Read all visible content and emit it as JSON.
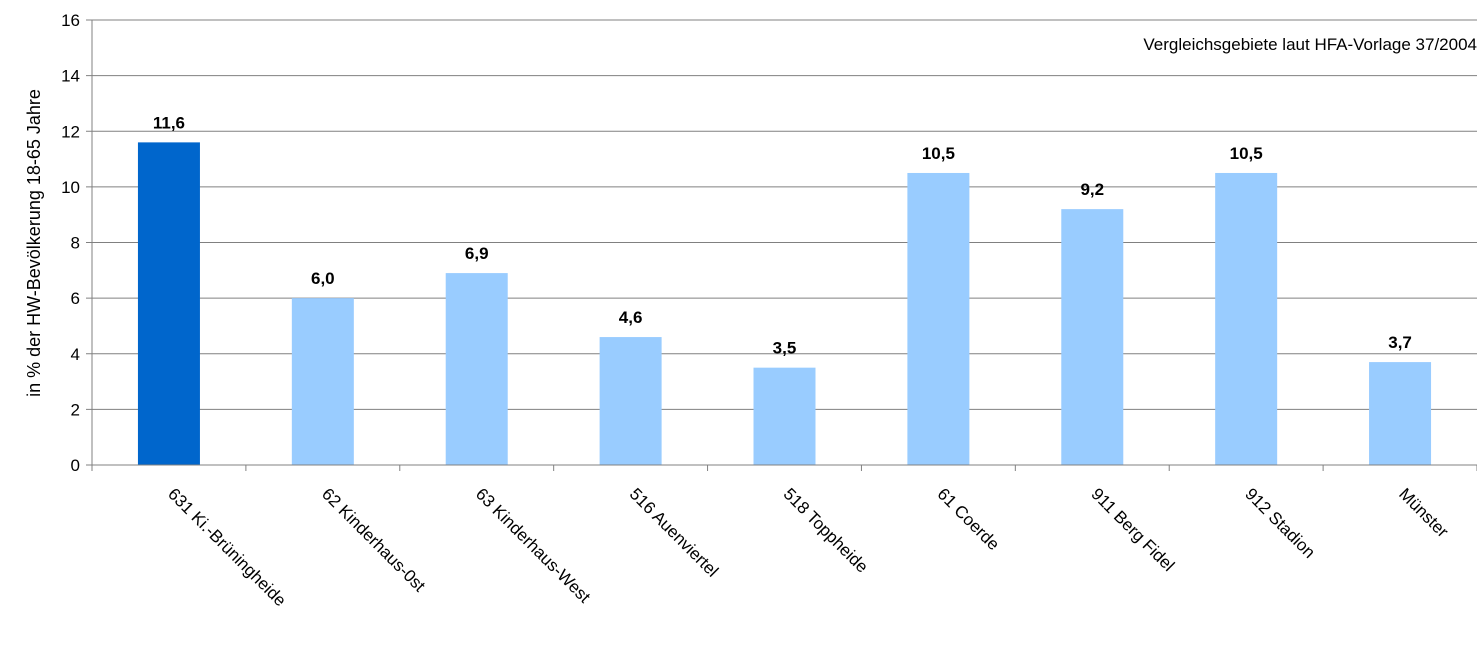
{
  "chart_data": {
    "type": "bar",
    "title": "",
    "xlabel": "",
    "ylabel": "in % der HW-Bevölkerung  18-65 Jahre",
    "annotation": "Vergleichsgebiete laut HFA-Vorlage 37/2004",
    "ylim": [
      0,
      16
    ],
    "yticks": [
      0,
      2,
      4,
      6,
      8,
      10,
      12,
      14,
      16
    ],
    "grid": true,
    "categories": [
      "631 Ki.-Brüningheide",
      "62 Kinderhaus-0st",
      "63 Kinderhaus-West",
      "516 Auenviertel",
      "518 Toppheide",
      "61 Coerde",
      "911 Berg Fidel",
      "912 Stadion",
      "Münster"
    ],
    "values": [
      11.6,
      6.0,
      6.9,
      4.6,
      3.5,
      10.5,
      9.2,
      10.5,
      3.7
    ],
    "value_labels": [
      "11,6",
      "6,0",
      "6,9",
      "4,6",
      "3,5",
      "10,5",
      "9,2",
      "10,5",
      "3,7"
    ],
    "highlight_index": 0,
    "colors": {
      "highlight": "#0066CC",
      "normal": "#99CCFF",
      "grid": "#808080",
      "axis": "#808080"
    }
  }
}
